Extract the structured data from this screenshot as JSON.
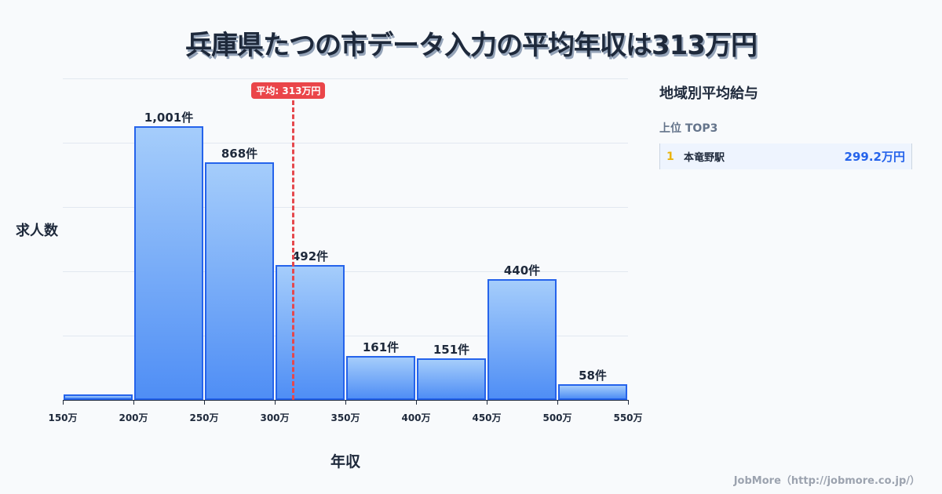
{
  "title": "兵庫県たつの市データ入力の平均年収は313万円",
  "chart_data": {
    "type": "bar",
    "title": "兵庫県たつの市データ入力の平均年収は313万円",
    "xlabel": "年収",
    "ylabel": "求人数",
    "bins": [
      "150-200万",
      "200-250万",
      "250-300万",
      "300-350万",
      "350-400万",
      "400-450万",
      "450-500万",
      "500-550万"
    ],
    "values": [
      20,
      1001,
      868,
      492,
      161,
      151,
      440,
      58
    ],
    "value_labels": [
      "",
      "1,001件",
      "868件",
      "492件",
      "161件",
      "151件",
      "440件",
      "58件"
    ],
    "tick_labels": [
      "150万",
      "200万",
      "250万",
      "300万",
      "350万",
      "400万",
      "450万",
      "500万",
      "550万"
    ],
    "ylim": [
      0,
      1175
    ],
    "grid": true,
    "mean": {
      "value": 313,
      "label": "平均: 313万円"
    },
    "colors": {
      "bar": "#4f8ef5",
      "bar_border": "#2563eb",
      "mean": "#e5484d"
    }
  },
  "sidebar": {
    "title": "地域別平均給与",
    "subtitle": "上位 TOP3",
    "items": [
      {
        "rank": "1",
        "name": "本竜野駅",
        "value": "299.2万円"
      }
    ]
  },
  "footer": "JobMore（http://jobmore.co.jp/）"
}
